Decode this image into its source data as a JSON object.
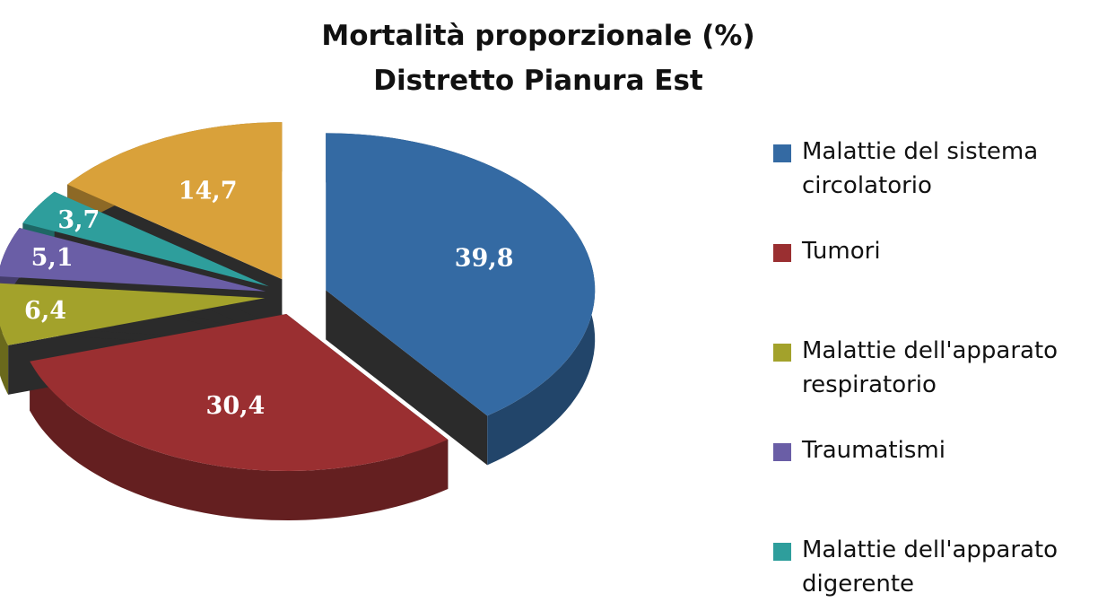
{
  "chart_data": {
    "type": "pie",
    "title": [
      "Mortalità proporzionale (%)",
      "Distretto Pianura Est"
    ],
    "categories": [
      "Malattie del sistema circolatorio",
      "Tumori",
      "Malattie dell'apparato respiratorio",
      "Traumatismi",
      "Malattie dell'apparato digerente",
      null
    ],
    "values": [
      39.8,
      30.4,
      6.4,
      5.1,
      3.7,
      14.7
    ],
    "value_labels": [
      "39,8",
      "30,4",
      "6,4",
      "5,1",
      "3,7",
      "14,7"
    ],
    "colors": [
      "#346aa3",
      "#9a2f31",
      "#a3a22b",
      "#6a5ea6",
      "#2e9e9c",
      "#d9a13a"
    ],
    "legend": "right"
  }
}
